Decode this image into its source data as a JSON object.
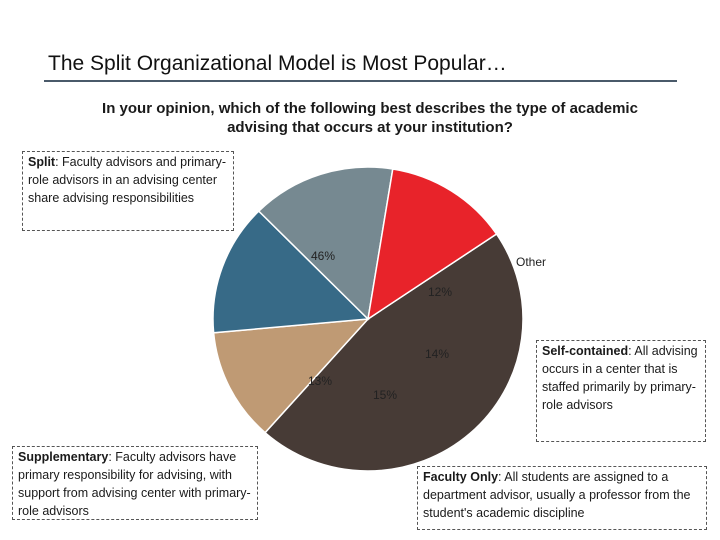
{
  "title": "The Split Organizational Model is Most Popular…",
  "question": "In your opinion, which of the following best describes the type of academic advising that occurs at your institution?",
  "callouts": {
    "split": {
      "term": "Split",
      "text": ": Faculty advisors and primary-role advisors in an advising center share advising responsibilities"
    },
    "supplementary": {
      "term": "Supplementary",
      "text": ": Faculty advisors have primary responsibility for advising, with support from advising center with primary-role advisors"
    },
    "self_contained": {
      "term": "Self-contained",
      "text": ": All advising occurs in a center that is staffed primarily by primary-role advisors"
    },
    "faculty_only": {
      "term": "Faculty Only",
      "text": ": All students are assigned to a department advisor, usually a professor from the student's academic discipline"
    }
  },
  "chart_data": {
    "type": "pie",
    "slices": [
      {
        "label": "",
        "value": 46,
        "display": "46%",
        "color": "#473b36"
      },
      {
        "label": "Other",
        "value": 12,
        "display": "12%",
        "color": "#bf9a74"
      },
      {
        "label": "",
        "value": 14,
        "display": "14%",
        "color": "#376a87"
      },
      {
        "label": "",
        "value": 15,
        "display": "15%",
        "color": "#768991"
      },
      {
        "label": "",
        "value": 13,
        "display": "13%",
        "color": "#e8232a"
      }
    ],
    "start_angle_deg": -34,
    "direction": "clockwise"
  }
}
